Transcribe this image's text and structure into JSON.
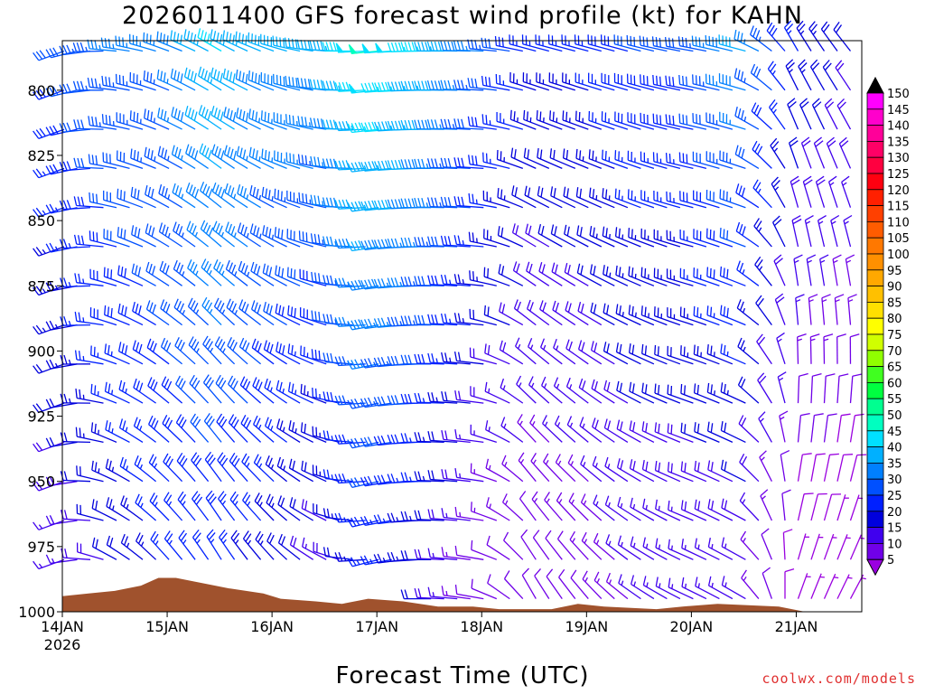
{
  "title": "2026011400 GFS forecast wind profile (kt) for KAHN",
  "credit": "coolwx.com/models",
  "chart_data": {
    "type": "wind-barb-time-height",
    "title": "2026011400 GFS forecast wind profile (kt) for KAHN",
    "xlabel": "Forecast Time (UTC)",
    "ylabel": "",
    "x_ticks": [
      {
        "label": "14JAN",
        "sub": "2026",
        "hour": 0
      },
      {
        "label": "15JAN",
        "sub": "",
        "hour": 24
      },
      {
        "label": "16JAN",
        "sub": "",
        "hour": 48
      },
      {
        "label": "17JAN",
        "sub": "",
        "hour": 72
      },
      {
        "label": "18JAN",
        "sub": "",
        "hour": 96
      },
      {
        "label": "19JAN",
        "sub": "",
        "hour": 120
      },
      {
        "label": "20JAN",
        "sub": "",
        "hour": 144
      },
      {
        "label": "21JAN",
        "sub": "",
        "hour": 168
      }
    ],
    "x_range_hours": [
      0,
      183
    ],
    "y_ticks": [
      800,
      825,
      850,
      875,
      900,
      925,
      950,
      975,
      1000
    ],
    "y_range_hpa": [
      1000,
      781
    ],
    "levels_hpa": [
      785,
      800,
      815,
      830,
      845,
      860,
      875,
      890,
      905,
      920,
      935,
      950,
      965,
      980,
      995
    ],
    "time_step_hours": 3,
    "wind_keyframes": [
      {
        "hour": 0,
        "low": {
          "dir": 250,
          "spd": 15
        },
        "high": {
          "dir": 250,
          "spd": 30
        }
      },
      {
        "hour": 12,
        "low": {
          "dir": 300,
          "spd": 20
        },
        "high": {
          "dir": 275,
          "spd": 35
        }
      },
      {
        "hour": 24,
        "low": {
          "dir": 320,
          "spd": 25
        },
        "high": {
          "dir": 290,
          "spd": 35
        }
      },
      {
        "hour": 36,
        "low": {
          "dir": 330,
          "spd": 25
        },
        "high": {
          "dir": 300,
          "spd": 45
        }
      },
      {
        "hour": 48,
        "low": {
          "dir": 320,
          "spd": 22
        },
        "high": {
          "dir": 290,
          "spd": 40
        }
      },
      {
        "hour": 60,
        "low": {
          "dir": 300,
          "spd": 15
        },
        "high": {
          "dir": 275,
          "spd": 40
        }
      },
      {
        "hour": 72,
        "low": {
          "dir": 255,
          "spd": 25
        },
        "high": {
          "dir": 265,
          "spd": 50
        }
      },
      {
        "hour": 84,
        "low": {
          "dir": 270,
          "spd": 20
        },
        "high": {
          "dir": 270,
          "spd": 45
        }
      },
      {
        "hour": 96,
        "low": {
          "dir": 280,
          "spd": 10
        },
        "high": {
          "dir": 272,
          "spd": 35
        }
      },
      {
        "hour": 108,
        "low": {
          "dir": 330,
          "spd": 10
        },
        "high": {
          "dir": 285,
          "spd": 25
        }
      },
      {
        "hour": 120,
        "low": {
          "dir": 320,
          "spd": 12
        },
        "high": {
          "dir": 285,
          "spd": 25
        }
      },
      {
        "hour": 132,
        "low": {
          "dir": 305,
          "spd": 15
        },
        "high": {
          "dir": 285,
          "spd": 30
        }
      },
      {
        "hour": 144,
        "low": {
          "dir": 295,
          "spd": 15
        },
        "high": {
          "dir": 280,
          "spd": 30
        }
      },
      {
        "hour": 156,
        "low": {
          "dir": 300,
          "spd": 15
        },
        "high": {
          "dir": 285,
          "spd": 40
        }
      },
      {
        "hour": 168,
        "low": {
          "dir": 20,
          "spd": 5
        },
        "high": {
          "dir": 330,
          "spd": 25
        }
      },
      {
        "hour": 183,
        "low": {
          "dir": 30,
          "spd": 5
        },
        "high": {
          "dir": 320,
          "spd": 20
        }
      }
    ],
    "terrain_pressure_hpa": [
      {
        "hour": 0,
        "p": 994
      },
      {
        "hour": 6,
        "p": 993
      },
      {
        "hour": 12,
        "p": 992
      },
      {
        "hour": 18,
        "p": 990
      },
      {
        "hour": 22,
        "p": 987
      },
      {
        "hour": 26,
        "p": 987
      },
      {
        "hour": 32,
        "p": 989
      },
      {
        "hour": 38,
        "p": 991
      },
      {
        "hour": 46,
        "p": 993
      },
      {
        "hour": 50,
        "p": 995
      },
      {
        "hour": 58,
        "p": 996
      },
      {
        "hour": 64,
        "p": 997
      },
      {
        "hour": 70,
        "p": 995
      },
      {
        "hour": 78,
        "p": 996
      },
      {
        "hour": 86,
        "p": 998
      },
      {
        "hour": 94,
        "p": 998
      },
      {
        "hour": 100,
        "p": 999
      },
      {
        "hour": 112,
        "p": 999
      },
      {
        "hour": 118,
        "p": 997
      },
      {
        "hour": 124,
        "p": 998
      },
      {
        "hour": 136,
        "p": 999
      },
      {
        "hour": 142,
        "p": 998
      },
      {
        "hour": 150,
        "p": 997
      },
      {
        "hour": 164,
        "p": 998
      },
      {
        "hour": 170,
        "p": 1000
      },
      {
        "hour": 183,
        "p": 1000
      }
    ],
    "colorbar": {
      "labels": [
        150,
        145,
        140,
        135,
        130,
        125,
        120,
        115,
        110,
        105,
        100,
        95,
        90,
        85,
        80,
        75,
        70,
        65,
        60,
        55,
        50,
        45,
        40,
        35,
        30,
        25,
        20,
        15,
        10,
        5
      ],
      "colors": [
        "#ff00ff",
        "#ff00cc",
        "#ff0099",
        "#ff0066",
        "#ff0040",
        "#ff0010",
        "#ff2000",
        "#ff4000",
        "#ff5c00",
        "#ff7800",
        "#ff9000",
        "#ffa800",
        "#ffc000",
        "#ffe000",
        "#ffff00",
        "#d0ff00",
        "#90ff00",
        "#40ff20",
        "#00ff40",
        "#00ff90",
        "#00ffc0",
        "#00e0ff",
        "#00b0ff",
        "#0080ff",
        "#0050ff",
        "#0020ff",
        "#0000dd",
        "#4000ee",
        "#7000e8",
        "#9a00e0"
      ],
      "top_arrow": "#000000"
    }
  }
}
